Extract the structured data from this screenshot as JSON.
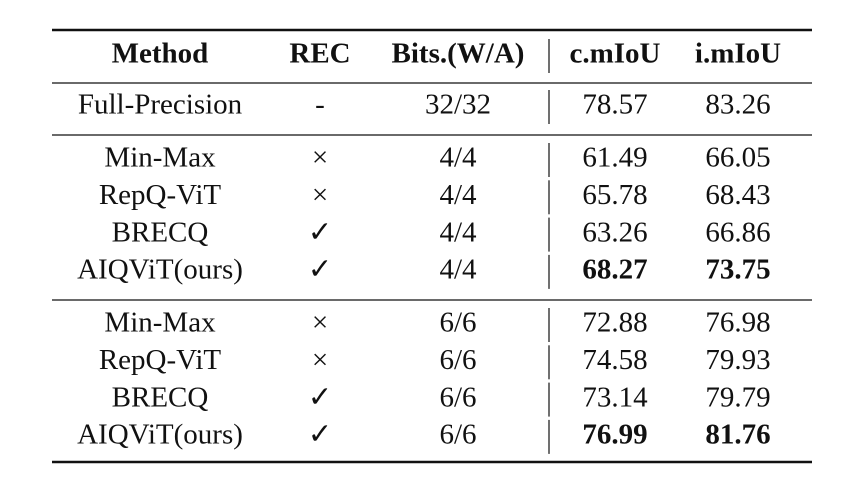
{
  "table": {
    "header": [
      "Method",
      "REC",
      "Bits.(W/A)",
      "c.mIoU",
      "i.mIoU"
    ],
    "groups": [
      [
        {
          "cells": [
            "Full-Precision",
            "-",
            "32/32",
            "78.57",
            "83.26"
          ]
        }
      ],
      [
        {
          "cells": [
            "Min-Max",
            "×",
            "4/4",
            "61.49",
            "66.05"
          ]
        },
        {
          "cells": [
            "RepQ-ViT",
            "×",
            "4/4",
            "65.78",
            "68.43"
          ]
        },
        {
          "cells": [
            "BRECQ",
            "✓",
            "4/4",
            "63.26",
            "66.86"
          ]
        },
        {
          "cells": [
            "AIQViT(ours)",
            "✓",
            "4/4",
            "68.27",
            "73.75"
          ],
          "bold": [
            3,
            4
          ]
        }
      ],
      [
        {
          "cells": [
            "Min-Max",
            "×",
            "6/6",
            "72.88",
            "76.98"
          ]
        },
        {
          "cells": [
            "RepQ-ViT",
            "×",
            "6/6",
            "74.58",
            "79.93"
          ]
        },
        {
          "cells": [
            "BRECQ",
            "✓",
            "6/6",
            "73.14",
            "79.79"
          ]
        },
        {
          "cells": [
            "AIQViT(ours)",
            "✓",
            "6/6",
            "76.99",
            "81.76"
          ],
          "bold": [
            3,
            4
          ]
        }
      ]
    ]
  }
}
